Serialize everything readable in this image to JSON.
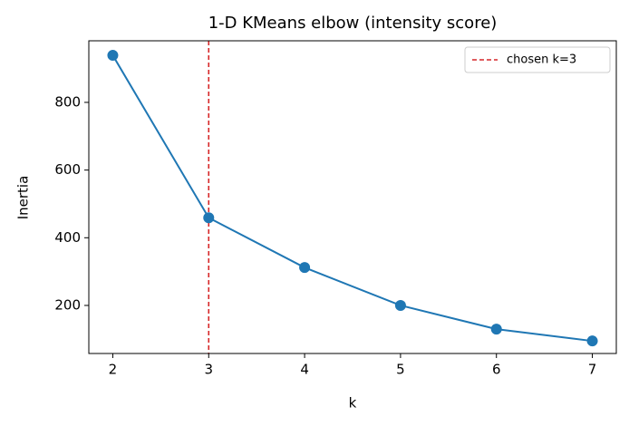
{
  "chart_data": {
    "type": "line",
    "title": "1-D KMeans elbow (intensity score)",
    "x_label": "k",
    "y_label": "Inertia",
    "x": [
      2,
      3,
      4,
      5,
      6,
      7
    ],
    "series": [
      {
        "color": "#1f77b4",
        "values": [
          939,
          459,
          312,
          200,
          130,
          95
        ]
      }
    ],
    "reference_line": {
      "name": "chosen k=3",
      "value": 3,
      "color": "#d62728"
    },
    "xlim": [
      1.75,
      7.25
    ],
    "xticks": [
      2,
      3,
      4,
      5,
      6,
      7
    ],
    "ylim": [
      58,
      982
    ],
    "yticks": [
      200,
      400,
      600,
      800
    ],
    "grid": false,
    "legend": "upper right"
  }
}
